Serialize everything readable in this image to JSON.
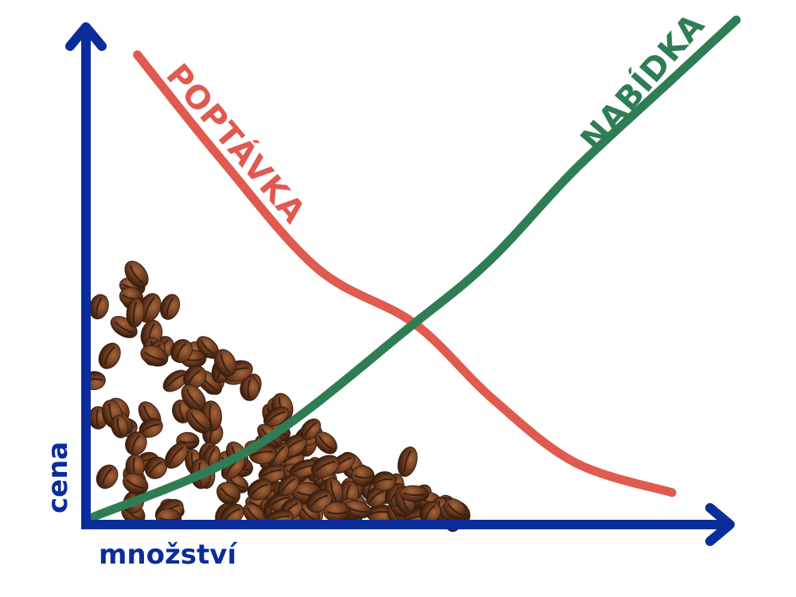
{
  "chart_data": {
    "type": "line",
    "title": "",
    "xlabel": "množství",
    "ylabel": "cena",
    "grid": false,
    "legend": "none",
    "axes_ticks": false,
    "series": [
      {
        "name": "POPTÁVKA",
        "color": "#e05a4f",
        "x": [
          0.07,
          0.2,
          0.35,
          0.5,
          0.62,
          0.75,
          0.9
        ],
        "y": [
          0.93,
          0.72,
          0.5,
          0.39,
          0.24,
          0.11,
          0.05
        ]
      },
      {
        "name": "NABÍDKA",
        "color": "#2f7d55",
        "x": [
          0.0,
          0.25,
          0.5,
          0.62,
          0.75,
          0.9,
          1.0
        ],
        "y": [
          0.0,
          0.14,
          0.39,
          0.52,
          0.7,
          0.88,
          1.0
        ]
      }
    ],
    "annotations": [
      "pile of coffee beans near the origin"
    ]
  },
  "colors": {
    "axis": "#0a2d9b",
    "demand": "#e05a4f",
    "supply": "#2f7d55",
    "bean_dark": "#3a1e10",
    "bean_mid": "#6b3a1f",
    "bean_light": "#9a5a30"
  }
}
